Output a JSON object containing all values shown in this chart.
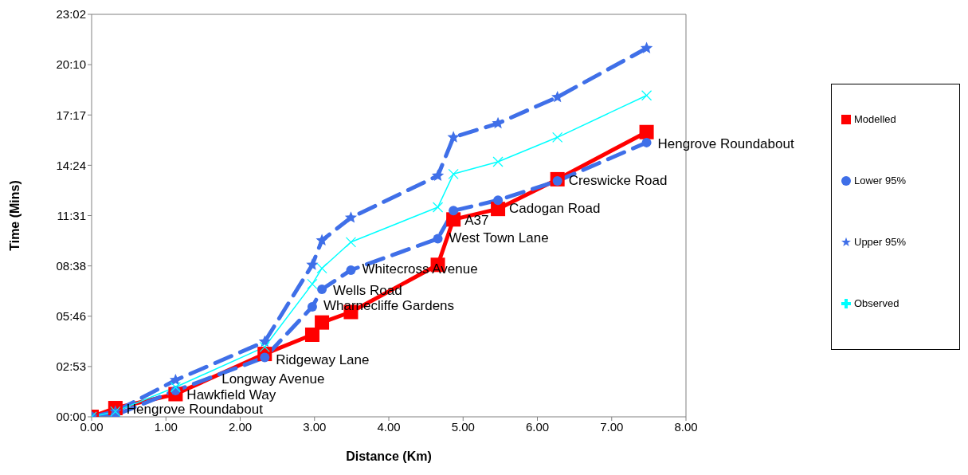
{
  "chart_data": {
    "type": "line",
    "xlabel": "Distance (Km)",
    "ylabel": "Time (Mins)",
    "x": [
      0,
      0.32,
      1.13,
      2.33,
      2.97,
      3.1,
      3.49,
      4.66,
      4.87,
      5.47,
      6.27,
      7.47
    ],
    "series": [
      {
        "name": "Modelled",
        "color": "#ff0000",
        "marker": "square",
        "line_style": "solid",
        "values": [
          0,
          0.5,
          1.3,
          3.6,
          4.7,
          5.4,
          6.0,
          8.7,
          11.3,
          11.9,
          13.6,
          16.3
        ]
      },
      {
        "name": "Lower 95%",
        "color": "#3f6fe8",
        "marker": "circle",
        "line_style": "dashed",
        "values": [
          0,
          0.1,
          1.5,
          3.4,
          6.3,
          7.3,
          8.4,
          10.2,
          11.8,
          12.4,
          13.5,
          15.7
        ]
      },
      {
        "name": "Upper 95%",
        "color": "#3f6fe8",
        "marker": "star",
        "line_style": "dashed",
        "values": [
          0,
          0.3,
          2.1,
          4.3,
          8.7,
          10.1,
          11.4,
          13.8,
          16.0,
          16.8,
          18.3,
          21.1
        ]
      },
      {
        "name": "Observed",
        "color": "#00ffff",
        "marker": "cross",
        "line_style": "solid",
        "values": [
          0,
          0.3,
          1.7,
          4.0,
          7.6,
          8.5,
          10.0,
          12.0,
          13.9,
          14.6,
          16.0,
          18.4
        ]
      }
    ],
    "xlim": [
      0,
      8
    ],
    "xticks": [
      {
        "value": 0,
        "label": "0.00"
      },
      {
        "value": 1,
        "label": "1.00"
      },
      {
        "value": 2,
        "label": "2.00"
      },
      {
        "value": 3,
        "label": "3.00"
      },
      {
        "value": 4,
        "label": "4.00"
      },
      {
        "value": 5,
        "label": "5.00"
      },
      {
        "value": 6,
        "label": "6.00"
      },
      {
        "value": 7,
        "label": "7.00"
      },
      {
        "value": 8,
        "label": "8.00"
      }
    ],
    "ylim": [
      0,
      23.04
    ],
    "yticks": [
      {
        "value": 0,
        "label": "00:00"
      },
      {
        "value": 2.88,
        "label": "02:53"
      },
      {
        "value": 5.76,
        "label": "05:46"
      },
      {
        "value": 8.64,
        "label": "08:38"
      },
      {
        "value": 11.52,
        "label": "11:31"
      },
      {
        "value": 14.4,
        "label": "14:24"
      },
      {
        "value": 17.28,
        "label": "17:17"
      },
      {
        "value": 20.16,
        "label": "20:10"
      },
      {
        "value": 23.04,
        "label": "23:02"
      }
    ],
    "annotations": [
      {
        "text": "Hengrove Roundabout",
        "x": 0.32,
        "y": 0.4
      },
      {
        "text": "Hawkfield Way",
        "x": 1.13,
        "y": 1.2
      },
      {
        "text": "Longway Avenue",
        "x": 1.6,
        "y": 2.1
      },
      {
        "text": "Ridgeway Lane",
        "x": 2.33,
        "y": 3.2
      },
      {
        "text": "Wharnecliffe Gardens",
        "x": 2.97,
        "y": 6.3
      },
      {
        "text": "Wells Road",
        "x": 3.1,
        "y": 7.2
      },
      {
        "text": "Whitecross Avenue",
        "x": 3.49,
        "y": 8.4
      },
      {
        "text": "West Town Lane",
        "x": 4.66,
        "y": 10.2
      },
      {
        "text": "A37",
        "x": 4.87,
        "y": 11.2
      },
      {
        "text": "Cadogan Road",
        "x": 5.47,
        "y": 11.9
      },
      {
        "text": "Creswicke Road",
        "x": 6.27,
        "y": 13.5
      },
      {
        "text": "Hengrove Roundabout",
        "x": 7.47,
        "y": 15.6
      }
    ],
    "grid": false,
    "legend": "right"
  }
}
